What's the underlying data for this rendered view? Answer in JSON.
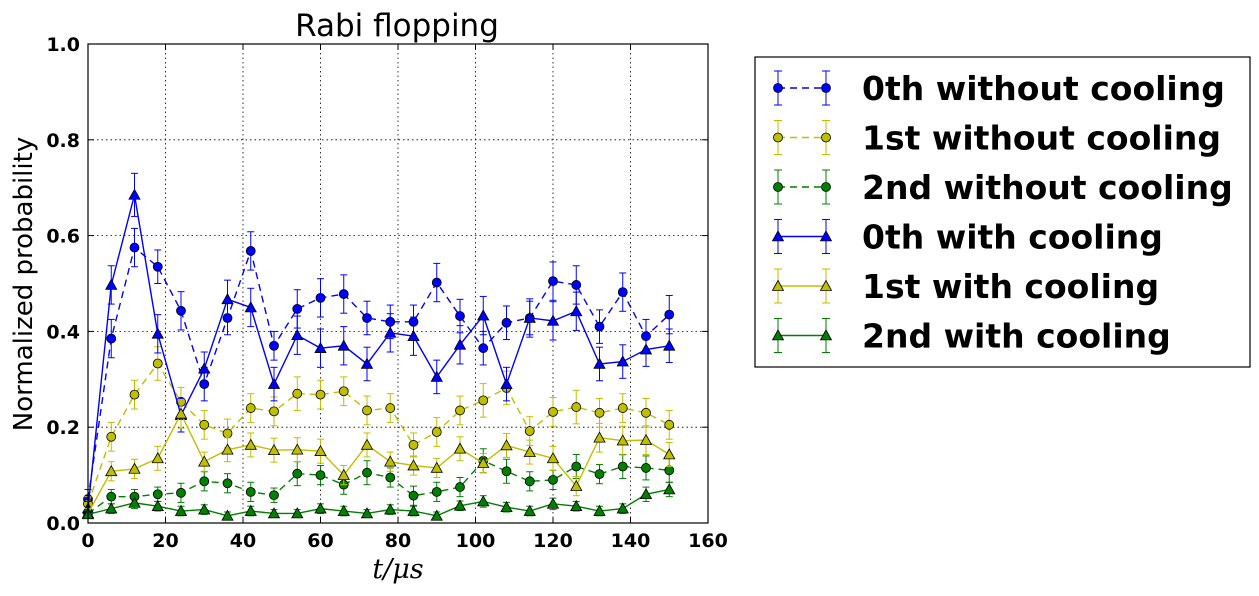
{
  "chart_data": {
    "type": "line",
    "title": "Rabi flopping",
    "xlabel": "t/μs",
    "ylabel": "Normalized probability",
    "xlim": [
      0,
      160
    ],
    "ylim": [
      0.0,
      1.0
    ],
    "xticks": [
      "0",
      "20",
      "40",
      "60",
      "80",
      "100",
      "120",
      "140",
      "160"
    ],
    "yticks": [
      "0.0",
      "0.2",
      "0.4",
      "0.6",
      "0.8",
      "1.0"
    ],
    "grid": true,
    "legend_position": "outside-right",
    "x": [
      0,
      6,
      12,
      18,
      24,
      30,
      36,
      42,
      48,
      54,
      60,
      66,
      72,
      78,
      84,
      90,
      96,
      102,
      108,
      114,
      120,
      126,
      132,
      138,
      144,
      150
    ],
    "series": [
      {
        "name": "0th without cooling",
        "color": "#0000ff",
        "marker": "circle",
        "linestyle": "dashed",
        "values": [
          0.05,
          0.385,
          0.575,
          0.535,
          0.443,
          0.29,
          0.428,
          0.568,
          0.37,
          0.447,
          0.47,
          0.478,
          0.428,
          0.42,
          0.42,
          0.502,
          0.432,
          0.365,
          0.418,
          0.428,
          0.505,
          0.497,
          0.41,
          0.482,
          0.39,
          0.435
        ],
        "errors": [
          0.02,
          0.04,
          0.04,
          0.035,
          0.04,
          0.035,
          0.035,
          0.04,
          0.03,
          0.04,
          0.04,
          0.04,
          0.035,
          0.035,
          0.035,
          0.04,
          0.035,
          0.035,
          0.035,
          0.035,
          0.04,
          0.04,
          0.035,
          0.04,
          0.035,
          0.04
        ]
      },
      {
        "name": "1st without cooling",
        "color": "#bfbf00",
        "marker": "circle",
        "linestyle": "dashed",
        "values": [
          0.04,
          0.18,
          0.268,
          0.333,
          0.253,
          0.205,
          0.187,
          0.24,
          0.233,
          0.27,
          0.268,
          0.275,
          0.235,
          0.24,
          0.163,
          0.19,
          0.235,
          0.256,
          0.282,
          0.192,
          0.232,
          0.242,
          0.23,
          0.24,
          0.23,
          0.205
        ],
        "errors": [
          0.015,
          0.03,
          0.03,
          0.035,
          0.03,
          0.03,
          0.03,
          0.03,
          0.03,
          0.035,
          0.03,
          0.03,
          0.03,
          0.03,
          0.025,
          0.03,
          0.03,
          0.035,
          0.035,
          0.03,
          0.03,
          0.035,
          0.03,
          0.03,
          0.03,
          0.03
        ]
      },
      {
        "name": "2nd without cooling",
        "color": "#007f00",
        "marker": "circle",
        "linestyle": "dashed",
        "values": [
          0.02,
          0.055,
          0.055,
          0.06,
          0.063,
          0.087,
          0.083,
          0.065,
          0.058,
          0.103,
          0.1,
          0.08,
          0.105,
          0.095,
          0.057,
          0.065,
          0.075,
          0.13,
          0.108,
          0.087,
          0.09,
          0.118,
          0.102,
          0.118,
          0.115,
          0.11
        ],
        "errors": [
          0.01,
          0.015,
          0.015,
          0.015,
          0.02,
          0.02,
          0.02,
          0.02,
          0.015,
          0.025,
          0.02,
          0.02,
          0.025,
          0.02,
          0.02,
          0.02,
          0.02,
          0.025,
          0.025,
          0.02,
          0.02,
          0.025,
          0.02,
          0.025,
          0.025,
          0.025
        ]
      },
      {
        "name": "0th with cooling",
        "color": "#0000ff",
        "marker": "triangle",
        "linestyle": "solid",
        "values": [
          0.03,
          0.497,
          0.685,
          0.395,
          0.225,
          0.322,
          0.467,
          0.45,
          0.29,
          0.392,
          0.365,
          0.37,
          0.332,
          0.397,
          0.39,
          0.305,
          0.372,
          0.433,
          0.29,
          0.428,
          0.422,
          0.442,
          0.332,
          0.337,
          0.362,
          0.37
        ],
        "errors": [
          0.015,
          0.04,
          0.045,
          0.04,
          0.035,
          0.035,
          0.04,
          0.04,
          0.035,
          0.04,
          0.04,
          0.04,
          0.035,
          0.04,
          0.04,
          0.035,
          0.04,
          0.04,
          0.035,
          0.04,
          0.04,
          0.04,
          0.035,
          0.035,
          0.035,
          0.035
        ]
      },
      {
        "name": "1st with cooling",
        "color": "#bfbf00",
        "marker": "triangle",
        "linestyle": "solid",
        "values": [
          0.02,
          0.108,
          0.113,
          0.135,
          0.228,
          0.128,
          0.153,
          0.163,
          0.152,
          0.153,
          0.15,
          0.1,
          0.163,
          0.128,
          0.12,
          0.115,
          0.155,
          0.125,
          0.162,
          0.148,
          0.135,
          0.077,
          0.178,
          0.172,
          0.173,
          0.143
        ],
        "errors": [
          0.01,
          0.02,
          0.02,
          0.025,
          0.03,
          0.02,
          0.025,
          0.025,
          0.025,
          0.025,
          0.025,
          0.02,
          0.025,
          0.02,
          0.02,
          0.02,
          0.025,
          0.02,
          0.025,
          0.025,
          0.025,
          0.02,
          0.03,
          0.03,
          0.03,
          0.025
        ]
      },
      {
        "name": "2nd with cooling",
        "color": "#007f00",
        "marker": "triangle",
        "linestyle": "solid",
        "values": [
          0.018,
          0.03,
          0.042,
          0.035,
          0.025,
          0.028,
          0.015,
          0.025,
          0.02,
          0.02,
          0.03,
          0.025,
          0.02,
          0.028,
          0.025,
          0.015,
          0.036,
          0.045,
          0.033,
          0.025,
          0.04,
          0.035,
          0.025,
          0.03,
          0.06,
          0.07
        ],
        "errors": [
          0.008,
          0.01,
          0.012,
          0.01,
          0.01,
          0.01,
          0.008,
          0.01,
          0.008,
          0.008,
          0.01,
          0.01,
          0.008,
          0.01,
          0.01,
          0.008,
          0.01,
          0.012,
          0.01,
          0.01,
          0.012,
          0.01,
          0.01,
          0.01,
          0.015,
          0.015
        ]
      }
    ]
  }
}
